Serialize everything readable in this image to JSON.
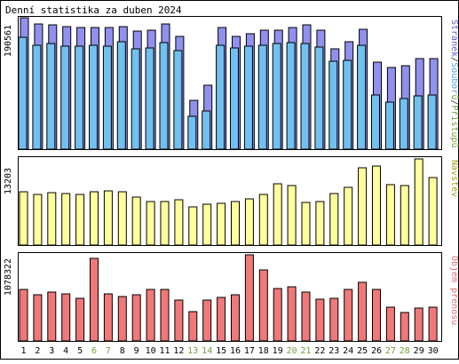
{
  "title": "Denní statistika za duben 2024",
  "colors": {
    "background": "#ffffff",
    "plot_background": "#ffffff",
    "border": "#000000",
    "hits": "#9090ee",
    "files": "#70c0f0",
    "pages": "#6c6cff",
    "visits": "#ffff9c",
    "volume": "#f07878",
    "weekday_label": "#000000",
    "weekend_label": "#70a040"
  },
  "chart_data": [
    {
      "type": "bar",
      "panel": "requests",
      "ylabel_value": "190561",
      "ylabel_value_num": 190561,
      "legend": {
        "parts": [
          {
            "text": "Stránek",
            "color": "#6060d0"
          },
          {
            "text": "/",
            "color": "#333333"
          },
          {
            "text": "Soubor",
            "color": "#50a0e0"
          },
          {
            "text": "ů",
            "color": "#70a040"
          },
          {
            "text": "/",
            "color": "#333333"
          },
          {
            "text": "Přístupů",
            "color": "#70a040"
          }
        ]
      },
      "categories": [
        "1",
        "2",
        "3",
        "4",
        "5",
        "6",
        "7",
        "8",
        "9",
        "10",
        "11",
        "12",
        "13",
        "14",
        "15",
        "16",
        "17",
        "18",
        "19",
        "20",
        "21",
        "22",
        "23",
        "24",
        "25",
        "26",
        "27",
        "28",
        "29",
        "30"
      ],
      "series": [
        {
          "name": "Přístupů",
          "values": [
            190561,
            182000,
            180000,
            178000,
            177000,
            177000,
            177000,
            178000,
            171000,
            172000,
            181000,
            164000,
            71000,
            93000,
            176000,
            163000,
            168000,
            172000,
            173000,
            176000,
            180000,
            172000,
            145000,
            156000,
            174000,
            126000,
            119000,
            121000,
            131000,
            131000
          ]
        },
        {
          "name": "Souborů",
          "values": [
            162000,
            151000,
            153000,
            149000,
            150000,
            151000,
            150000,
            156000,
            146000,
            147000,
            154000,
            143000,
            48000,
            56000,
            151000,
            147000,
            150000,
            151000,
            153000,
            154000,
            153000,
            148000,
            127000,
            129000,
            151000,
            78000,
            68000,
            74000,
            77000,
            79000
          ]
        },
        {
          "name": "Stránek",
          "values": [
            0,
            0,
            0,
            0,
            0,
            0,
            0,
            0,
            0,
            0,
            0,
            0,
            0,
            0,
            0,
            0,
            0,
            0,
            0,
            0,
            0,
            0,
            0,
            0,
            0,
            0,
            0,
            0,
            0,
            0
          ]
        }
      ]
    },
    {
      "type": "bar",
      "panel": "visits",
      "ylabel_value": "13203",
      "ylabel_value_num": 13203,
      "legend": {
        "parts": [
          {
            "text": "Návštěv",
            "color": "#a0a020"
          }
        ]
      },
      "series": [
        {
          "name": "Návštěv",
          "values": [
            8100,
            7800,
            8000,
            7900,
            7800,
            8200,
            8300,
            8100,
            7400,
            6700,
            6700,
            6900,
            5900,
            6200,
            6400,
            6700,
            7100,
            7700,
            9400,
            9100,
            6500,
            6700,
            7900,
            8900,
            11900,
            12100,
            9300,
            9100,
            13203,
            10300
          ]
        }
      ]
    },
    {
      "type": "bar",
      "panel": "volume",
      "ylabel_value": "1078322",
      "ylabel_value_num": 1078322,
      "legend": {
        "parts": [
          {
            "text": "Objem přenosu",
            "color": "#e07070"
          }
        ]
      },
      "series": [
        {
          "name": "Objem přenosu",
          "values": [
            640000,
            580000,
            610000,
            590000,
            530000,
            1030000,
            590000,
            560000,
            580000,
            640000,
            640000,
            510000,
            370000,
            510000,
            550000,
            580000,
            1078322,
            890000,
            660000,
            680000,
            610000,
            520000,
            530000,
            650000,
            730000,
            650000,
            420000,
            360000,
            410000,
            420000
          ]
        }
      ]
    }
  ],
  "x_labels": [
    {
      "text": "1",
      "weekend": false
    },
    {
      "text": "2",
      "weekend": false
    },
    {
      "text": "3",
      "weekend": false
    },
    {
      "text": "4",
      "weekend": false
    },
    {
      "text": "5",
      "weekend": false
    },
    {
      "text": "6",
      "weekend": true
    },
    {
      "text": "7",
      "weekend": true
    },
    {
      "text": "8",
      "weekend": false
    },
    {
      "text": "9",
      "weekend": false
    },
    {
      "text": "10",
      "weekend": false
    },
    {
      "text": "11",
      "weekend": false
    },
    {
      "text": "12",
      "weekend": false
    },
    {
      "text": "13",
      "weekend": true
    },
    {
      "text": "14",
      "weekend": true
    },
    {
      "text": "15",
      "weekend": false
    },
    {
      "text": "16",
      "weekend": false
    },
    {
      "text": "17",
      "weekend": false
    },
    {
      "text": "18",
      "weekend": false
    },
    {
      "text": "19",
      "weekend": false
    },
    {
      "text": "20",
      "weekend": true
    },
    {
      "text": "21",
      "weekend": true
    },
    {
      "text": "22",
      "weekend": false
    },
    {
      "text": "23",
      "weekend": false
    },
    {
      "text": "24",
      "weekend": false
    },
    {
      "text": "25",
      "weekend": false
    },
    {
      "text": "26",
      "weekend": false
    },
    {
      "text": "27",
      "weekend": true
    },
    {
      "text": "28",
      "weekend": true
    },
    {
      "text": "29",
      "weekend": false
    },
    {
      "text": "30",
      "weekend": false
    }
  ]
}
